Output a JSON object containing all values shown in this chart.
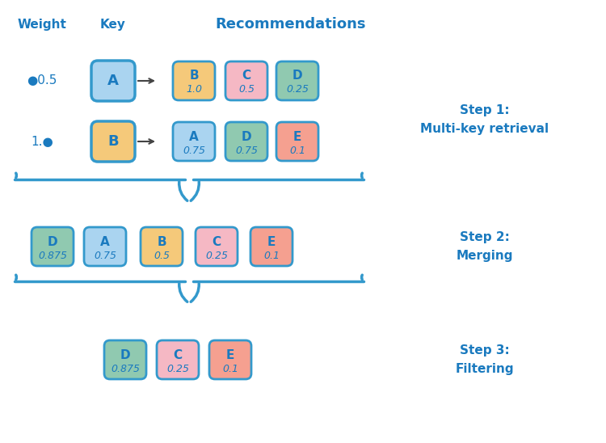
{
  "background_color": "#ffffff",
  "text_color_blue": "#1a7abf",
  "border_color": "#3399cc",
  "col_headers": [
    "Weight",
    "Key",
    "Recommendations"
  ],
  "row1_weight": "0.5",
  "row2_weight": "1.0",
  "row1_key": {
    "letter": "A",
    "color": "#aad4f0"
  },
  "row2_key": {
    "letter": "B",
    "color": "#f5c97a"
  },
  "row1_recs": [
    {
      "letter": "B",
      "value": "1.0",
      "color": "#f5c97a"
    },
    {
      "letter": "C",
      "value": "0.5",
      "color": "#f5b8c4"
    },
    {
      "letter": "D",
      "value": "0.25",
      "color": "#90c9b0"
    }
  ],
  "row2_recs": [
    {
      "letter": "A",
      "value": "0.75",
      "color": "#aad4f0"
    },
    {
      "letter": "D",
      "value": "0.75",
      "color": "#90c9b0"
    },
    {
      "letter": "E",
      "value": "0.1",
      "color": "#f5a090"
    }
  ],
  "merged_items": [
    {
      "letter": "D",
      "value": "0.875",
      "color": "#90c9b0"
    },
    {
      "letter": "A",
      "value": "0.75",
      "color": "#aad4f0"
    },
    {
      "letter": "B",
      "value": "0.5",
      "color": "#f5c97a"
    },
    {
      "letter": "C",
      "value": "0.25",
      "color": "#f5b8c4"
    },
    {
      "letter": "E",
      "value": "0.1",
      "color": "#f5a090"
    }
  ],
  "filtered_items": [
    {
      "letter": "D",
      "value": "0.875",
      "color": "#90c9b0"
    },
    {
      "letter": "C",
      "value": "0.25",
      "color": "#f5b8c4"
    },
    {
      "letter": "E",
      "value": "0.1",
      "color": "#f5a090"
    }
  ],
  "step1_label": "Step 1:\nMulti-key retrieval",
  "step2_label": "Step 2:\nMerging",
  "step3_label": "Step 3:\nFiltering",
  "figw": 7.5,
  "figh": 5.48,
  "dpi": 100
}
